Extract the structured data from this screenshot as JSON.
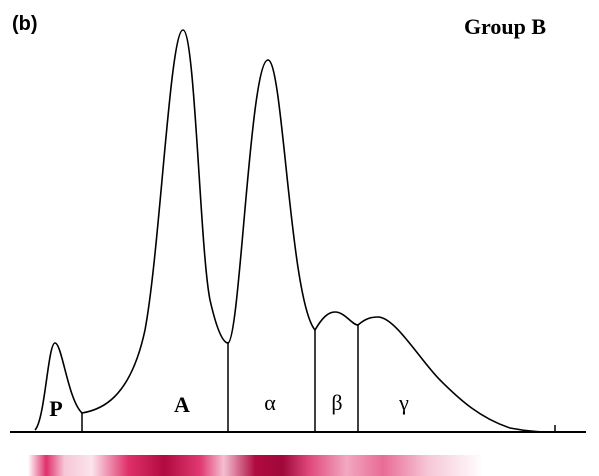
{
  "panel_label": "(b)",
  "group_label": "Group B",
  "fractions": [
    "P",
    "A",
    "α",
    "β",
    "γ"
  ]
}
